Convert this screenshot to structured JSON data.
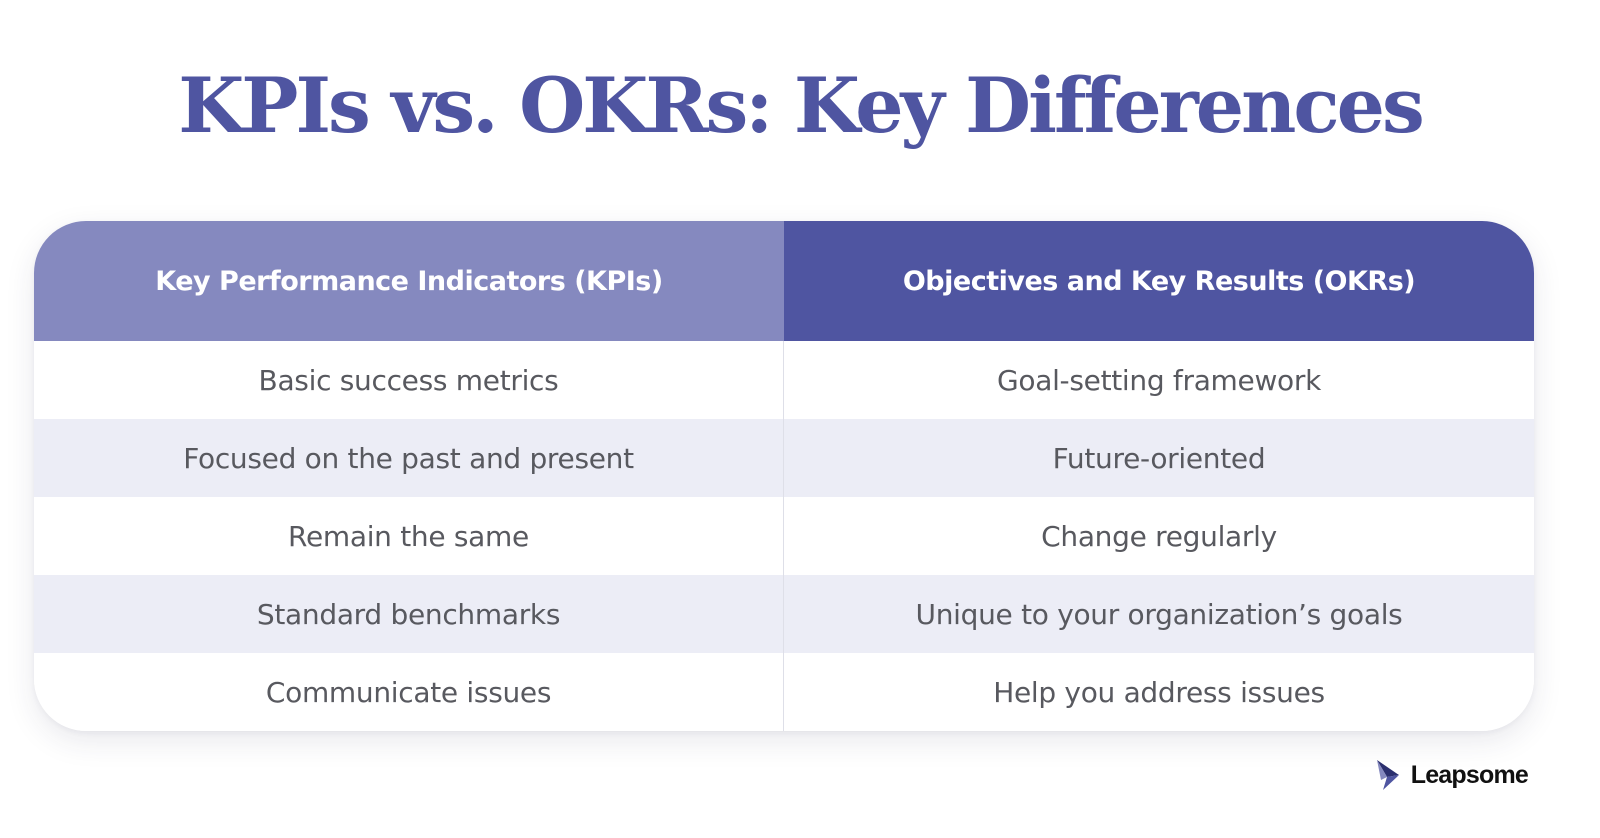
{
  "title": "KPIs vs. OKRs: Key Differences",
  "table": {
    "headers": [
      "Key Performance Indicators (KPIs)",
      "Objectives and Key Results (OKRs)"
    ],
    "rows": [
      [
        "Basic success metrics",
        "Goal-setting framework"
      ],
      [
        "Focused on the past and present",
        "Future-oriented"
      ],
      [
        "Remain the same",
        "Change regularly"
      ],
      [
        "Standard benchmarks",
        "Unique to your organization’s goals"
      ],
      [
        "Communicate  issues",
        "Help you address  issues"
      ]
    ]
  },
  "brand": {
    "name": "Leapsome",
    "icon": "leapsome-bird-logo"
  },
  "colors": {
    "title": "#4f55a1",
    "header_left": "#8589bf",
    "header_right": "#4f55a1",
    "row_alt": "#ecedf6",
    "body_text": "#58595f"
  }
}
